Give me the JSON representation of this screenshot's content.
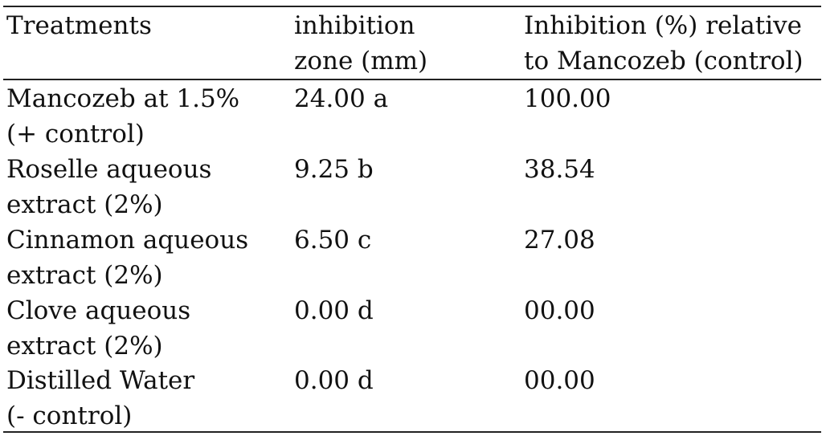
{
  "table": {
    "headers": [
      "Treatments",
      "inhibition\nzone (mm)",
      "Inhibition (%) relative\nto Mancozeb (control)"
    ],
    "rows": [
      [
        "Mancozeb at 1.5%\n(+ control)",
        "24.00 a",
        "100.00"
      ],
      [
        "Roselle aqueous\nextract (2%)",
        "9.25 b",
        "38.54"
      ],
      [
        "Cinnamon aqueous\nextract (2%)",
        "6.50 c",
        "27.08"
      ],
      [
        "Clove aqueous\nextract (2%)",
        "0.00 d",
        "00.00"
      ],
      [
        "Distilled Water\n(- control)",
        "0.00 d",
        "00.00"
      ]
    ]
  }
}
